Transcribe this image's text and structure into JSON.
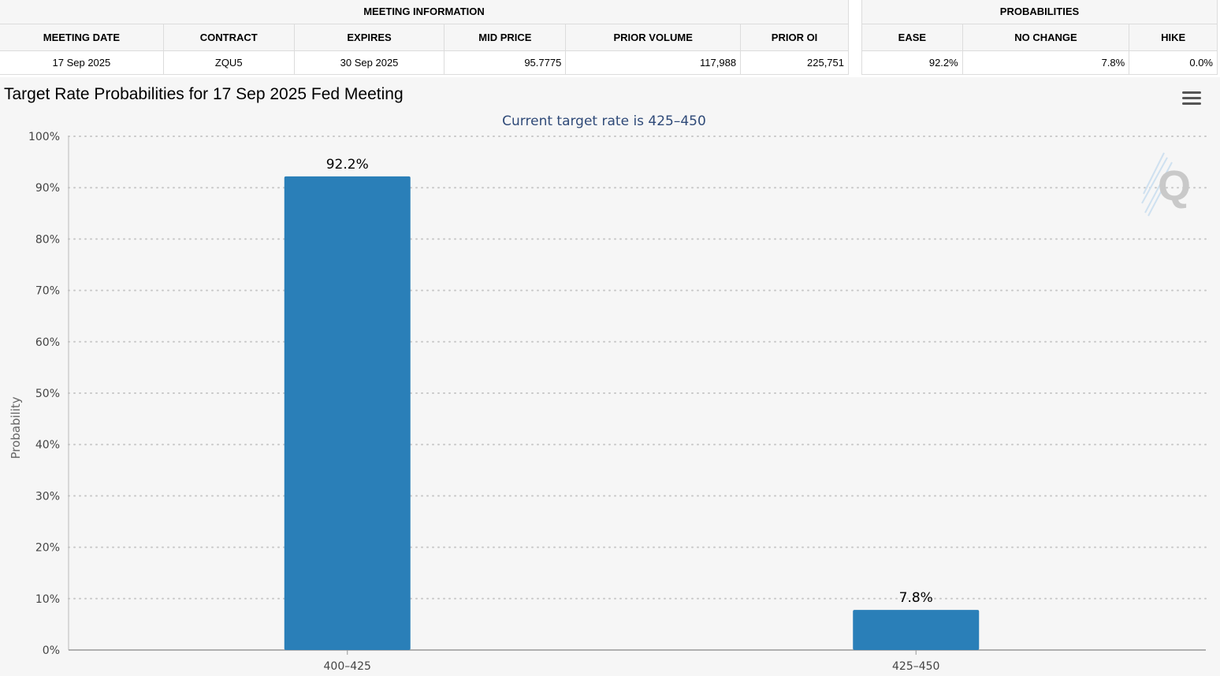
{
  "meeting_info": {
    "section_title": "MEETING INFORMATION",
    "columns": [
      "MEETING DATE",
      "CONTRACT",
      "EXPIRES",
      "MID PRICE",
      "PRIOR VOLUME",
      "PRIOR OI"
    ],
    "row": [
      "17 Sep 2025",
      "ZQU5",
      "30 Sep 2025",
      "95.7775",
      "117,988",
      "225,751"
    ]
  },
  "probabilities": {
    "section_title": "PROBABILITIES",
    "columns": [
      "EASE",
      "NO CHANGE",
      "HIKE"
    ],
    "row": [
      "92.2%",
      "7.8%",
      "0.0%"
    ]
  },
  "chart_data": {
    "type": "bar",
    "title": "Target Rate Probabilities for 17 Sep 2025 Fed Meeting",
    "subtitle": "Current target rate is 425–450",
    "xlabel": "",
    "ylabel": "Probability",
    "categories": [
      "400–425",
      "425–450"
    ],
    "values": [
      92.2,
      7.8
    ],
    "data_labels": [
      "92.2%",
      "7.8%"
    ],
    "ylim": [
      0,
      100
    ],
    "yticks": [
      0,
      10,
      20,
      30,
      40,
      50,
      60,
      70,
      80,
      90,
      100
    ],
    "ytick_labels": [
      "0%",
      "10%",
      "20%",
      "30%",
      "40%",
      "50%",
      "60%",
      "70%",
      "80%",
      "90%",
      "100%"
    ],
    "grid": true,
    "bar_color": "#2a7fb8",
    "subtitle_color": "#2f4a78"
  },
  "icons": {
    "menu": "menu-icon",
    "watermark": "q-watermark-icon"
  }
}
